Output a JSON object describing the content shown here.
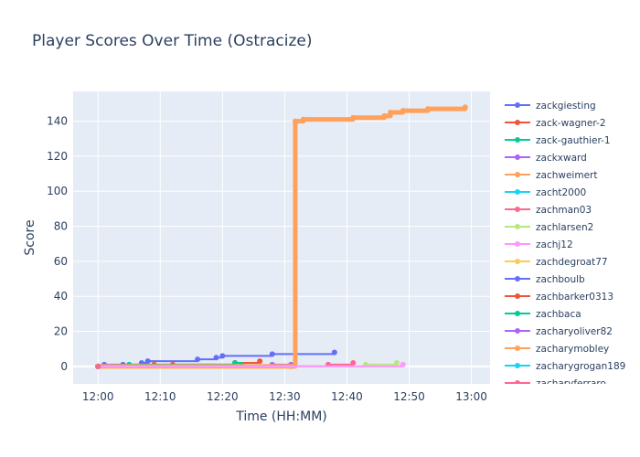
{
  "chart_data": {
    "type": "line",
    "title": "Player Scores Over Time (Ostracize)",
    "xlabel": "Time (HH:MM)",
    "ylabel": "Score",
    "x_ticks": [
      "12:00",
      "12:10",
      "12:20",
      "12:30",
      "12:40",
      "12:50",
      "13:00"
    ],
    "y_ticks": [
      0,
      20,
      40,
      60,
      80,
      100,
      120,
      140
    ],
    "xlim": [
      "11:56",
      "13:03"
    ],
    "ylim": [
      -10,
      157
    ],
    "grid": true,
    "legend_position": "right",
    "series": [
      {
        "name": "zackgiesting",
        "color": "#636efa",
        "points": [
          [
            "12:00",
            0
          ],
          [
            "12:01",
            1
          ],
          [
            "12:04",
            1
          ],
          [
            "12:07",
            2
          ],
          [
            "12:08",
            3
          ],
          [
            "12:16",
            4
          ],
          [
            "12:19",
            5
          ],
          [
            "12:20",
            6
          ],
          [
            "12:28",
            7
          ],
          [
            "12:38",
            8
          ]
        ]
      },
      {
        "name": "zack-wagner-2",
        "color": "#ef553b",
        "points": [
          [
            "12:00",
            0
          ],
          [
            "12:09",
            1
          ],
          [
            "12:12",
            1
          ],
          [
            "12:22",
            2
          ],
          [
            "12:26",
            3
          ]
        ]
      },
      {
        "name": "zack-gauthier-1",
        "color": "#00cc96",
        "points": [
          [
            "12:00",
            0
          ],
          [
            "12:05",
            1
          ],
          [
            "12:22",
            2
          ],
          [
            "12:23",
            1
          ]
        ]
      },
      {
        "name": "zackxward",
        "color": "#ab63fa",
        "points": [
          [
            "12:00",
            0
          ],
          [
            "12:28",
            1
          ],
          [
            "12:31",
            1
          ]
        ]
      },
      {
        "name": "zachweimert",
        "color": "#ffa15a",
        "points": [
          [
            "12:00",
            0
          ],
          [
            "12:31",
            0
          ],
          [
            "12:31.7",
            140
          ],
          [
            "12:33",
            141
          ],
          [
            "12:41",
            142
          ],
          [
            "12:46",
            143
          ],
          [
            "12:47",
            145
          ],
          [
            "12:49",
            146
          ],
          [
            "12:53",
            147
          ],
          [
            "12:59",
            148
          ]
        ]
      },
      {
        "name": "zacht2000",
        "color": "#19d3f3",
        "points": [
          [
            "12:00",
            0
          ],
          [
            "12:37",
            1
          ]
        ]
      },
      {
        "name": "zachman03",
        "color": "#ff6692",
        "points": [
          [
            "12:00",
            0
          ],
          [
            "12:37",
            1
          ],
          [
            "12:41",
            2
          ]
        ]
      },
      {
        "name": "zachlarsen2",
        "color": "#b6e880",
        "points": [
          [
            "12:00",
            0
          ],
          [
            "12:43",
            1
          ],
          [
            "12:48",
            2
          ]
        ]
      },
      {
        "name": "zachj12",
        "color": "#ff97ff",
        "points": [
          [
            "12:00",
            0
          ],
          [
            "12:49",
            1
          ]
        ]
      },
      {
        "name": "zachdegroat77",
        "color": "#fecb52",
        "points": [
          [
            "12:00",
            0
          ]
        ]
      },
      {
        "name": "zachboulb",
        "color": "#636efa",
        "points": [
          [
            "12:00",
            0
          ]
        ]
      },
      {
        "name": "zachbarker0313",
        "color": "#ef553b",
        "points": [
          [
            "12:00",
            0
          ]
        ]
      },
      {
        "name": "zachbaca",
        "color": "#00cc96",
        "points": [
          [
            "12:00",
            0
          ]
        ]
      },
      {
        "name": "zacharyoliver82",
        "color": "#ab63fa",
        "points": [
          [
            "12:00",
            0
          ]
        ]
      },
      {
        "name": "zacharymobley",
        "color": "#ffa15a",
        "points": [
          [
            "12:00",
            0
          ]
        ]
      },
      {
        "name": "zacharygrogan189",
        "color": "#19d3f3",
        "points": [
          [
            "12:00",
            0
          ]
        ]
      },
      {
        "name": "zacharyferraro",
        "color": "#ff6692",
        "points": [
          [
            "12:00",
            0
          ]
        ]
      }
    ]
  }
}
